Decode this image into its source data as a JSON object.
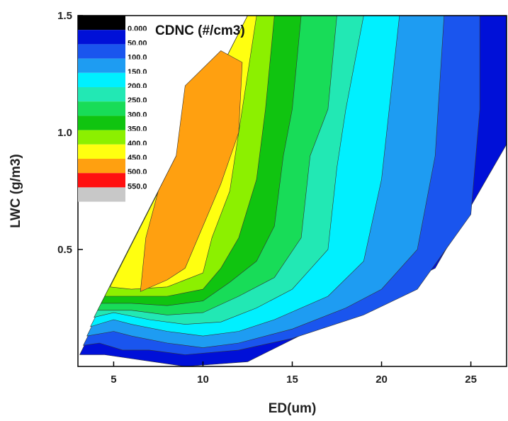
{
  "chart_data": {
    "type": "contour",
    "title": "",
    "xlabel": "ED(um)",
    "ylabel": "LWC (g/m3)",
    "xlim": [
      3,
      27
    ],
    "ylim": [
      0,
      1.5
    ],
    "x_ticks": [
      5,
      10,
      15,
      20,
      25
    ],
    "y_ticks": [
      0.5,
      1.0,
      1.5
    ],
    "x_tick_labels": [
      "5",
      "10",
      "15",
      "20",
      "25"
    ],
    "y_tick_labels": [
      "0.5",
      "1.0",
      "1.5"
    ],
    "legend": {
      "title": "CDNC (#/cm3)",
      "position": "top-left",
      "levels": [
        {
          "label": "0.000",
          "color": "#000000"
        },
        {
          "label": "50.00",
          "color": "#0010d8"
        },
        {
          "label": "100.0",
          "color": "#1a55ee"
        },
        {
          "label": "150.0",
          "color": "#1e9cf2"
        },
        {
          "label": "200.0",
          "color": "#00f0ff"
        },
        {
          "label": "250.0",
          "color": "#22e8b4"
        },
        {
          "label": "300.0",
          "color": "#18dc58"
        },
        {
          "label": "350.0",
          "color": "#10c410"
        },
        {
          "label": "400.0",
          "color": "#8cf000"
        },
        {
          "label": "450.0",
          "color": "#ffff10"
        },
        {
          "label": "500.0",
          "color": "#ffa010"
        },
        {
          "label": "550.0",
          "color": "#ff1010"
        },
        {
          "label": "",
          "color": "#c8c8c8"
        }
      ]
    },
    "regions": [
      {
        "level": 1,
        "points": [
          [
            3.1,
            0.05
          ],
          [
            4.5,
            0.05
          ],
          [
            9,
            0.0
          ],
          [
            12.5,
            0.02
          ],
          [
            23,
            0.42
          ],
          [
            27,
            0.95
          ],
          [
            27,
            1.5
          ],
          [
            12.5,
            1.5
          ],
          [
            3.1,
            0.05
          ]
        ]
      },
      {
        "level": 2,
        "points": [
          [
            3.3,
            0.09
          ],
          [
            4.2,
            0.1
          ],
          [
            5.5,
            0.07
          ],
          [
            7,
            0.07
          ],
          [
            9,
            0.05
          ],
          [
            12,
            0.07
          ],
          [
            15,
            0.12
          ],
          [
            19,
            0.22
          ],
          [
            22,
            0.33
          ],
          [
            25,
            0.65
          ],
          [
            25.5,
            1.1
          ],
          [
            25.5,
            1.5
          ],
          [
            12.5,
            1.5
          ],
          [
            3.3,
            0.09
          ]
        ]
      },
      {
        "level": 3,
        "points": [
          [
            3.5,
            0.13
          ],
          [
            5,
            0.15
          ],
          [
            6,
            0.13
          ],
          [
            8,
            0.1
          ],
          [
            10,
            0.08
          ],
          [
            12,
            0.1
          ],
          [
            15,
            0.16
          ],
          [
            18,
            0.25
          ],
          [
            20,
            0.33
          ],
          [
            22,
            0.5
          ],
          [
            23,
            0.9
          ],
          [
            23.5,
            1.5
          ],
          [
            12.5,
            1.5
          ],
          [
            3.5,
            0.13
          ]
        ]
      },
      {
        "level": 4,
        "points": [
          [
            3.7,
            0.17
          ],
          [
            5,
            0.2
          ],
          [
            6,
            0.18
          ],
          [
            8,
            0.15
          ],
          [
            10,
            0.13
          ],
          [
            12,
            0.15
          ],
          [
            14,
            0.2
          ],
          [
            17,
            0.3
          ],
          [
            19,
            0.45
          ],
          [
            20,
            0.8
          ],
          [
            21,
            1.5
          ],
          [
            12.5,
            1.5
          ],
          [
            3.7,
            0.17
          ]
        ]
      },
      {
        "level": 5,
        "points": [
          [
            3.9,
            0.21
          ],
          [
            5,
            0.23
          ],
          [
            7,
            0.2
          ],
          [
            9,
            0.18
          ],
          [
            11,
            0.19
          ],
          [
            13,
            0.25
          ],
          [
            15,
            0.33
          ],
          [
            17,
            0.5
          ],
          [
            17.5,
            0.85
          ],
          [
            18,
            1.1
          ],
          [
            19,
            1.5
          ],
          [
            12.5,
            1.5
          ],
          [
            3.9,
            0.21
          ]
        ]
      },
      {
        "level": 6,
        "points": [
          [
            4.1,
            0.24
          ],
          [
            6,
            0.24
          ],
          [
            8,
            0.22
          ],
          [
            10,
            0.23
          ],
          [
            12,
            0.3
          ],
          [
            14,
            0.38
          ],
          [
            15.5,
            0.55
          ],
          [
            16,
            0.9
          ],
          [
            17,
            1.1
          ],
          [
            17.5,
            1.5
          ],
          [
            12.5,
            1.5
          ],
          [
            4.1,
            0.24
          ]
        ]
      },
      {
        "level": 7,
        "points": [
          [
            4.3,
            0.27
          ],
          [
            6,
            0.27
          ],
          [
            8,
            0.26
          ],
          [
            10,
            0.28
          ],
          [
            11.5,
            0.36
          ],
          [
            13,
            0.45
          ],
          [
            14,
            0.6
          ],
          [
            14.5,
            0.9
          ],
          [
            15,
            1.1
          ],
          [
            15.5,
            1.5
          ],
          [
            12.5,
            1.5
          ],
          [
            4.3,
            0.27
          ]
        ]
      },
      {
        "level": 8,
        "points": [
          [
            4.5,
            0.3
          ],
          [
            6,
            0.3
          ],
          [
            8,
            0.3
          ],
          [
            10,
            0.33
          ],
          [
            11,
            0.42
          ],
          [
            12,
            0.55
          ],
          [
            13,
            0.8
          ],
          [
            13.5,
            1.1
          ],
          [
            14,
            1.5
          ],
          [
            12.5,
            1.5
          ],
          [
            4.5,
            0.3
          ]
        ]
      },
      {
        "level": 9,
        "points": [
          [
            4.8,
            0.34
          ],
          [
            6,
            0.33
          ],
          [
            8,
            0.34
          ],
          [
            10,
            0.4
          ],
          [
            10.5,
            0.55
          ],
          [
            11.5,
            0.75
          ],
          [
            12,
            1.0
          ],
          [
            12.5,
            1.25
          ],
          [
            13,
            1.5
          ],
          [
            12.5,
            1.5
          ],
          [
            4.8,
            0.34
          ]
        ]
      },
      {
        "level": 10,
        "points": [
          [
            6.5,
            0.32
          ],
          [
            8,
            0.37
          ],
          [
            9,
            0.42
          ],
          [
            10,
            0.6
          ],
          [
            11,
            0.78
          ],
          [
            12,
            1.0
          ],
          [
            12.2,
            1.3
          ],
          [
            11,
            1.35
          ],
          [
            9,
            1.2
          ],
          [
            8.5,
            0.9
          ],
          [
            7.5,
            0.75
          ],
          [
            6.8,
            0.55
          ],
          [
            6.5,
            0.32
          ]
        ]
      }
    ]
  }
}
